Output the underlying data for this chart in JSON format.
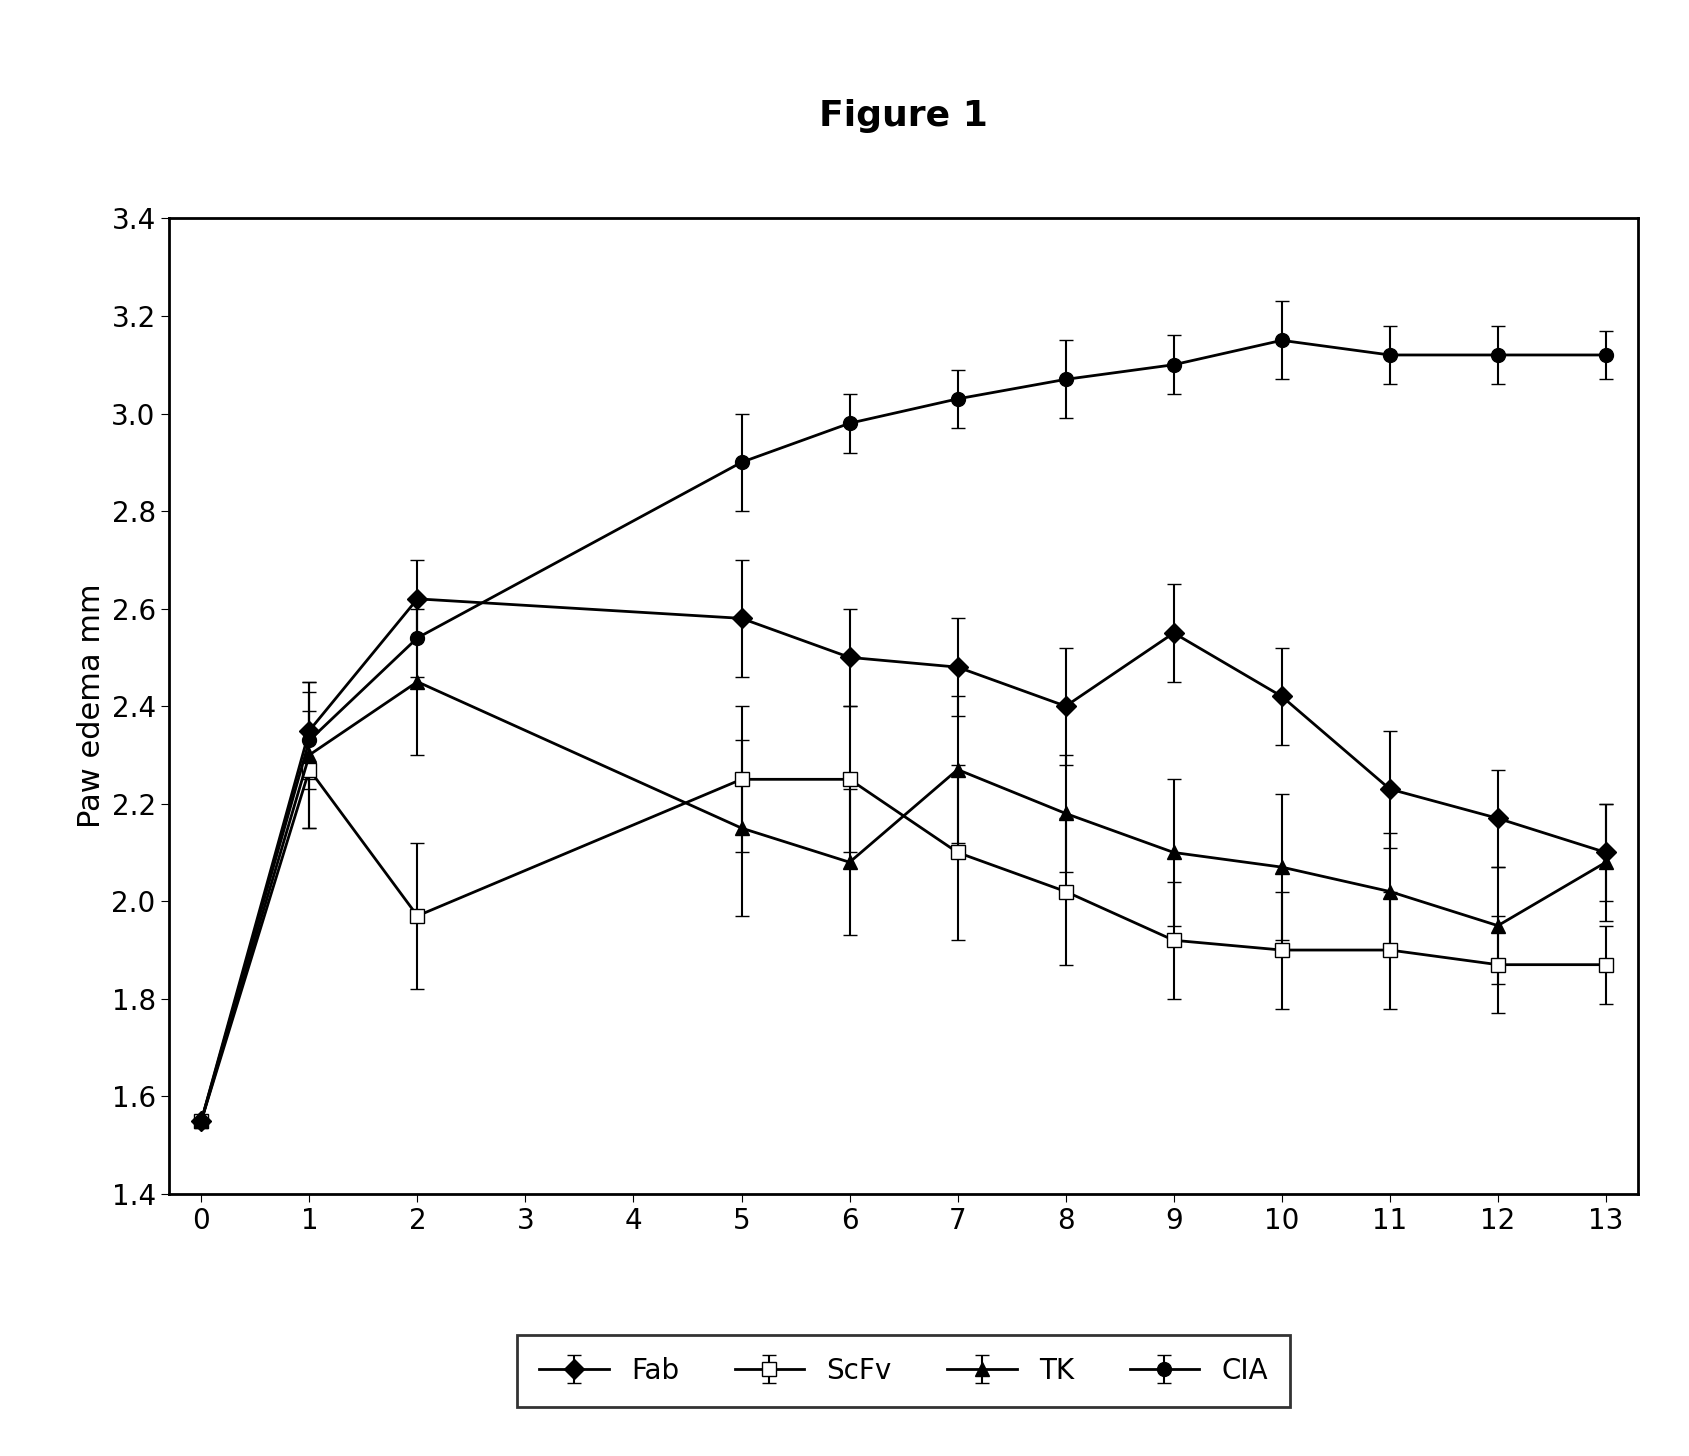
{
  "title": "Figure 1",
  "ylabel": "Paw edema mm",
  "xlim": [
    -0.3,
    13.3
  ],
  "ylim": [
    1.4,
    3.4
  ],
  "yticks": [
    1.4,
    1.6,
    1.8,
    2.0,
    2.2,
    2.4,
    2.6,
    2.8,
    3.0,
    3.2,
    3.4
  ],
  "xticks": [
    0,
    1,
    2,
    3,
    4,
    5,
    6,
    7,
    8,
    9,
    10,
    11,
    12,
    13
  ],
  "series": {
    "Fab": {
      "x": [
        0,
        1,
        2,
        5,
        6,
        7,
        8,
        9,
        10,
        11,
        12,
        13
      ],
      "y": [
        1.55,
        2.35,
        2.62,
        2.58,
        2.5,
        2.48,
        2.4,
        2.55,
        2.42,
        2.23,
        2.17,
        2.1
      ],
      "yerr": [
        0.0,
        0.1,
        0.08,
        0.12,
        0.1,
        0.1,
        0.12,
        0.1,
        0.1,
        0.12,
        0.1,
        0.1
      ],
      "marker": "D",
      "color": "#000000",
      "linestyle": "-",
      "markersize": 10,
      "markerfacecolor": "#000000"
    },
    "ScFv": {
      "x": [
        0,
        1,
        2,
        5,
        6,
        7,
        8,
        9,
        10,
        11,
        12,
        13
      ],
      "y": [
        1.55,
        2.27,
        1.97,
        2.25,
        2.25,
        2.1,
        2.02,
        1.92,
        1.9,
        1.9,
        1.87,
        1.87
      ],
      "yerr": [
        0.0,
        0.12,
        0.15,
        0.15,
        0.15,
        0.18,
        0.15,
        0.12,
        0.12,
        0.12,
        0.1,
        0.08
      ],
      "marker": "s",
      "color": "#000000",
      "linestyle": "-",
      "markersize": 10,
      "markerfacecolor": "#ffffff"
    },
    "TK": {
      "x": [
        0,
        1,
        2,
        5,
        6,
        7,
        8,
        9,
        10,
        11,
        12,
        13
      ],
      "y": [
        1.55,
        2.3,
        2.45,
        2.15,
        2.08,
        2.27,
        2.18,
        2.1,
        2.07,
        2.02,
        1.95,
        2.08
      ],
      "yerr": [
        0.0,
        0.15,
        0.15,
        0.18,
        0.15,
        0.15,
        0.12,
        0.15,
        0.15,
        0.12,
        0.12,
        0.12
      ],
      "marker": "^",
      "color": "#000000",
      "linestyle": "-",
      "markersize": 10,
      "markerfacecolor": "#000000"
    },
    "CIA": {
      "x": [
        0,
        1,
        2,
        5,
        6,
        7,
        8,
        9,
        10,
        11,
        12,
        13
      ],
      "y": [
        1.55,
        2.33,
        2.54,
        2.9,
        2.98,
        3.03,
        3.07,
        3.1,
        3.15,
        3.12,
        3.12,
        3.12
      ],
      "yerr": [
        0.0,
        0.1,
        0.08,
        0.1,
        0.06,
        0.06,
        0.08,
        0.06,
        0.08,
        0.06,
        0.06,
        0.05
      ],
      "marker": "o",
      "color": "#000000",
      "linestyle": "-",
      "markersize": 10,
      "markerfacecolor": "#000000"
    }
  },
  "background_color": "#ffffff",
  "title_fontsize": 26,
  "label_fontsize": 22,
  "tick_fontsize": 20,
  "legend_fontsize": 20
}
